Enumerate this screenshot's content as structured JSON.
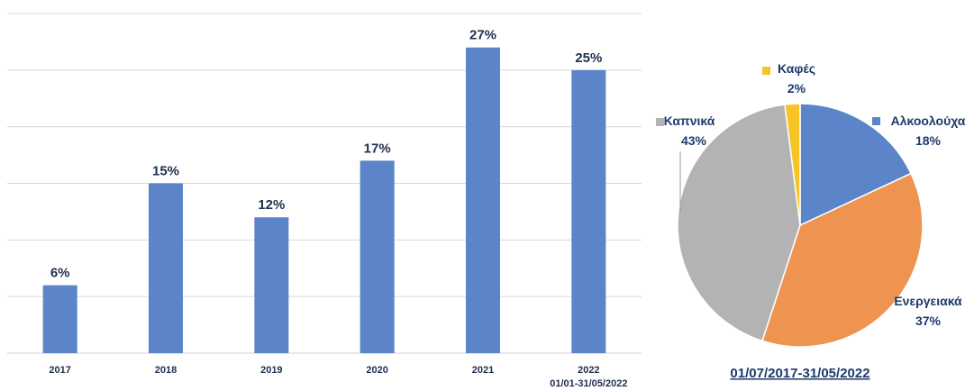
{
  "chart_data": [
    {
      "type": "bar",
      "categories": [
        "2017",
        "2018",
        "2019",
        "2020",
        "2021",
        "2022"
      ],
      "category_sublabels": [
        "",
        "",
        "",
        "",
        "",
        "01/01-31/05/2022"
      ],
      "values": [
        6,
        15,
        12,
        17,
        27,
        25
      ],
      "value_labels": [
        "6%",
        "15%",
        "12%",
        "17%",
        "27%",
        "25%"
      ],
      "ylim": [
        0,
        30
      ],
      "grid": true,
      "color": "#5b84c9"
    },
    {
      "type": "pie",
      "caption": "01/07/2017-31/05/2022",
      "slices": [
        {
          "label": "Αλκοολούχα",
          "value": 18,
          "value_label": "18%",
          "color": "#5b84c9"
        },
        {
          "label": "Ενεργειακά",
          "value": 37,
          "value_label": "37%",
          "color": "#ee9350"
        },
        {
          "label": "Καπνικά",
          "value": 43,
          "value_label": "43%",
          "color": "#b3b3b3"
        },
        {
          "label": "Καφές",
          "value": 2,
          "value_label": "2%",
          "color": "#f7c425"
        }
      ]
    }
  ]
}
